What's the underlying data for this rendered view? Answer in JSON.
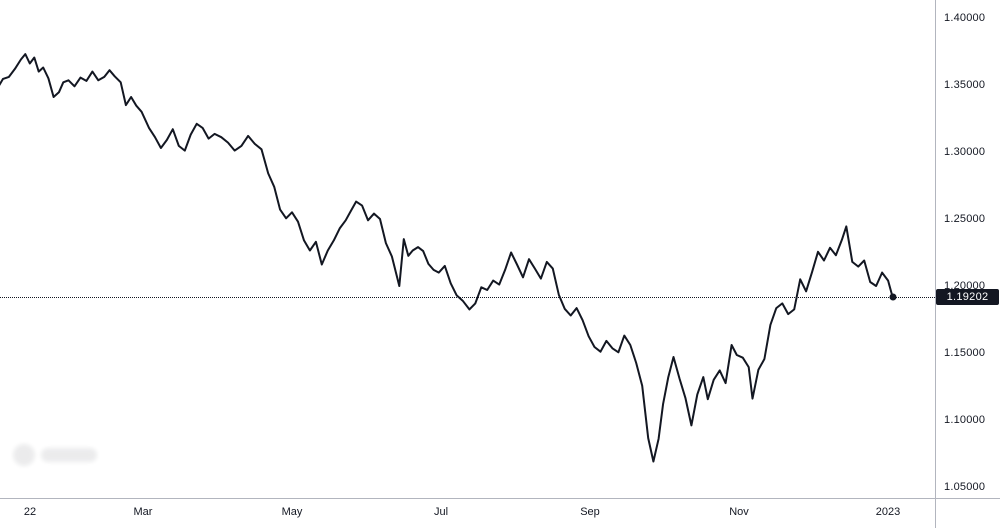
{
  "chart_data": {
    "type": "line",
    "title": "",
    "legend": false,
    "grid": false,
    "line_color": "#131722",
    "last_price": 1.19202,
    "last_price_label": "1.19202",
    "ylim": [
      1.0418,
      1.4134
    ],
    "xlim_months": [
      0.08,
      12.63
    ],
    "x_unit": "months since start of 2022",
    "y_ticks": [
      {
        "value": 1.4,
        "label": "1.40000"
      },
      {
        "value": 1.35,
        "label": "1.35000"
      },
      {
        "value": 1.3,
        "label": "1.30000"
      },
      {
        "value": 1.25,
        "label": "1.25000"
      },
      {
        "value": 1.2,
        "label": "1.20000"
      },
      {
        "value": 1.15,
        "label": "1.15000"
      },
      {
        "value": 1.1,
        "label": "1.10000"
      },
      {
        "value": 1.05,
        "label": "1.05000"
      }
    ],
    "x_ticks": [
      {
        "month": 0,
        "label": "22"
      },
      {
        "month": 2,
        "label": "Mar"
      },
      {
        "month": 4,
        "label": "May"
      },
      {
        "month": 6,
        "label": "Jul"
      },
      {
        "month": 8,
        "label": "Sep"
      },
      {
        "month": 10,
        "label": "Nov"
      },
      {
        "month": 12,
        "label": "2023"
      }
    ],
    "x_months": [
      0.05,
      0.12,
      0.2,
      0.28,
      0.36,
      0.42,
      0.48,
      0.54,
      0.6,
      0.66,
      0.73,
      0.8,
      0.87,
      0.93,
      1.0,
      1.08,
      1.16,
      1.24,
      1.32,
      1.4,
      1.48,
      1.55,
      1.62,
      1.7,
      1.77,
      1.84,
      1.91,
      1.98,
      2.08,
      2.16,
      2.24,
      2.32,
      2.4,
      2.48,
      2.56,
      2.64,
      2.72,
      2.8,
      2.88,
      2.96,
      3.05,
      3.14,
      3.23,
      3.32,
      3.41,
      3.5,
      3.59,
      3.68,
      3.76,
      3.84,
      3.92,
      4.0,
      4.08,
      4.16,
      4.24,
      4.32,
      4.4,
      4.48,
      4.56,
      4.64,
      4.72,
      4.79,
      4.86,
      4.94,
      5.02,
      5.1,
      5.18,
      5.26,
      5.34,
      5.44,
      5.5,
      5.56,
      5.62,
      5.69,
      5.76,
      5.83,
      5.9,
      5.97,
      6.05,
      6.13,
      6.21,
      6.29,
      6.38,
      6.46,
      6.54,
      6.62,
      6.7,
      6.78,
      6.86,
      6.94,
      7.02,
      7.1,
      7.18,
      7.26,
      7.34,
      7.42,
      7.5,
      7.58,
      7.66,
      7.74,
      7.82,
      7.9,
      7.98,
      8.06,
      8.14,
      8.22,
      8.3,
      8.38,
      8.46,
      8.54,
      8.62,
      8.7,
      8.78,
      8.85,
      8.92,
      8.98,
      9.05,
      9.12,
      9.2,
      9.28,
      9.36,
      9.44,
      9.52,
      9.58,
      9.66,
      9.74,
      9.82,
      9.9,
      9.97,
      10.05,
      10.13,
      10.18,
      10.26,
      10.34,
      10.42,
      10.5,
      10.58,
      10.66,
      10.74,
      10.82,
      10.9,
      10.98,
      11.06,
      11.14,
      11.22,
      11.3,
      11.38,
      11.44,
      11.52,
      11.6,
      11.68,
      11.76,
      11.84,
      11.92,
      12.0,
      12.06
    ],
    "values": [
      1.348,
      1.3545,
      1.356,
      1.362,
      1.369,
      1.373,
      1.366,
      1.3705,
      1.36,
      1.363,
      1.355,
      1.341,
      1.3445,
      1.352,
      1.3535,
      1.349,
      1.3555,
      1.353,
      1.36,
      1.3535,
      1.356,
      1.361,
      1.3565,
      1.352,
      1.335,
      1.341,
      1.3345,
      1.33,
      1.318,
      1.311,
      1.303,
      1.309,
      1.317,
      1.3045,
      1.301,
      1.313,
      1.321,
      1.318,
      1.31,
      1.3135,
      1.311,
      1.307,
      1.301,
      1.3045,
      1.312,
      1.306,
      1.302,
      1.284,
      1.274,
      1.257,
      1.2505,
      1.255,
      1.248,
      1.234,
      1.2265,
      1.233,
      1.216,
      1.2265,
      1.234,
      1.243,
      1.249,
      1.256,
      1.263,
      1.26,
      1.249,
      1.254,
      1.25,
      1.232,
      1.222,
      1.2,
      1.235,
      1.2225,
      1.2265,
      1.229,
      1.226,
      1.2165,
      1.212,
      1.21,
      1.215,
      1.202,
      1.193,
      1.189,
      1.1825,
      1.187,
      1.199,
      1.197,
      1.204,
      1.201,
      1.212,
      1.225,
      1.216,
      1.2065,
      1.22,
      1.213,
      1.2055,
      1.218,
      1.213,
      1.1935,
      1.183,
      1.178,
      1.1835,
      1.1745,
      1.1625,
      1.1545,
      1.151,
      1.159,
      1.1535,
      1.1505,
      1.163,
      1.156,
      1.1425,
      1.1255,
      1.0865,
      1.069,
      1.086,
      1.112,
      1.132,
      1.147,
      1.131,
      1.1165,
      1.096,
      1.119,
      1.132,
      1.1155,
      1.13,
      1.137,
      1.1275,
      1.156,
      1.1485,
      1.1465,
      1.1395,
      1.116,
      1.1375,
      1.1455,
      1.171,
      1.1835,
      1.187,
      1.179,
      1.1825,
      1.205,
      1.196,
      1.2105,
      1.2255,
      1.219,
      1.2285,
      1.223,
      1.2345,
      1.2445,
      1.218,
      1.2145,
      1.219,
      1.203,
      1.2,
      1.21,
      1.204,
      1.19202
    ]
  },
  "colors": {
    "line": "#131722",
    "axis_border": "#b2b5be",
    "axis_text": "#131722",
    "badge_bg": "#131722",
    "badge_text": "#ffffff"
  }
}
